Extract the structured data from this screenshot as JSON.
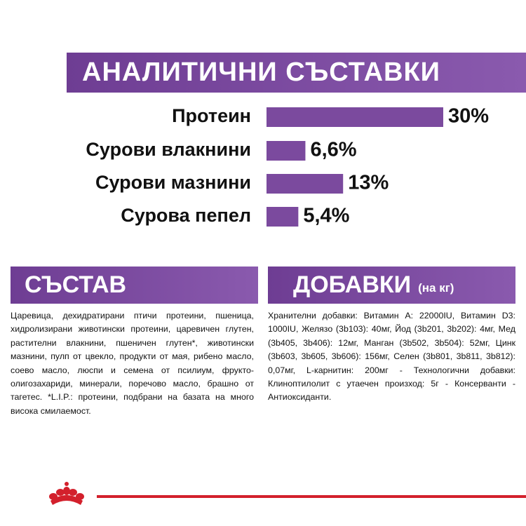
{
  "chart_data": {
    "type": "bar",
    "orientation": "horizontal",
    "title": "АНАЛИТИЧНИ СЪСТАВКИ",
    "categories": [
      "Протеин",
      "Сурови влакнини",
      "Сурови мазнини",
      "Сурова пепел"
    ],
    "values": [
      30,
      6.6,
      13,
      5.4
    ],
    "value_labels": [
      "30%",
      "6,6%",
      "13%",
      "5,4%"
    ],
    "color": "#7b4a9e"
  },
  "composition": {
    "title": "СЪСТАВ",
    "text": "Царевица, дехидратирани птичи протеини, пшеница, хидролизирани животински протеини, царевичен глутен, растителни влакнини, пшеничен глутен*, животински мазнини, пулп от цвекло, продукти от мая, рибено масло, соево масло, люспи и семена от псилиум, фрукто-олигозахариди, минерали, поречово масло, брашно от тагетес. *L.I.P.: протеини, подбрани на базата на много висока смилаемост."
  },
  "additives": {
    "title": "ДОБАВКИ",
    "unit": "(на кг)",
    "text": "Хранителни добавки: Витамин А: 22000IU, Витамин D3: 1000IU, Желязо (3b103): 40мг, Йод (3b201, 3b202): 4мг, Мед (3b405, 3b406): 12мг, Манган (3b502, 3b504): 52мг, Цинк (3b603, 3b605, 3b606): 156мг, Селен (3b801, 3b811, 3b812): 0,07мг, L-карнитин: 200мг - Технологични добавки: Клиноптилолит с утаечен произход: 5г - Консерванти - Антиоксиданти."
  }
}
